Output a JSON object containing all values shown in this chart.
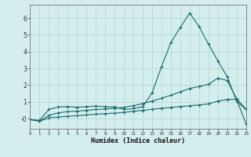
{
  "xlabel": "Humidex (Indice chaleur)",
  "bg_color": "#d4eeee",
  "grid_color": "#b8d8d8",
  "line_color": "#1a6b6b",
  "xlim": [
    0,
    23
  ],
  "ylim": [
    -0.6,
    6.8
  ],
  "xticks": [
    0,
    1,
    2,
    3,
    4,
    5,
    6,
    7,
    8,
    9,
    10,
    11,
    12,
    13,
    14,
    15,
    16,
    17,
    18,
    19,
    20,
    21,
    22,
    23
  ],
  "yticks": [
    0,
    1,
    2,
    3,
    4,
    5,
    6
  ],
  "curve1_x": [
    0,
    1,
    2,
    3,
    4,
    5,
    6,
    7,
    8,
    9,
    10,
    11,
    12,
    13,
    14,
    15,
    16,
    17,
    18,
    19,
    20,
    21,
    22,
    23
  ],
  "curve1_y": [
    -0.05,
    -0.1,
    0.55,
    0.7,
    0.72,
    0.68,
    0.72,
    0.75,
    0.72,
    0.7,
    0.55,
    0.6,
    0.72,
    1.55,
    3.1,
    4.55,
    5.45,
    6.3,
    5.5,
    4.45,
    3.45,
    2.5,
    1.05,
    0.55
  ],
  "curve2_x": [
    0,
    1,
    2,
    3,
    4,
    5,
    6,
    7,
    8,
    9,
    10,
    11,
    12,
    13,
    14,
    15,
    16,
    17,
    18,
    19,
    20,
    21,
    22,
    23
  ],
  "curve2_y": [
    -0.05,
    -0.15,
    0.2,
    0.35,
    0.42,
    0.45,
    0.5,
    0.55,
    0.58,
    0.62,
    0.68,
    0.78,
    0.9,
    1.05,
    1.22,
    1.4,
    1.6,
    1.8,
    1.92,
    2.05,
    2.42,
    2.28,
    1.18,
    0.58
  ],
  "curve3_x": [
    0,
    1,
    2,
    3,
    4,
    5,
    6,
    7,
    8,
    9,
    10,
    11,
    12,
    13,
    14,
    15,
    16,
    17,
    18,
    19,
    20,
    21,
    22,
    23
  ],
  "curve3_y": [
    -0.05,
    -0.15,
    0.05,
    0.1,
    0.14,
    0.18,
    0.22,
    0.27,
    0.3,
    0.33,
    0.38,
    0.44,
    0.5,
    0.56,
    0.62,
    0.67,
    0.72,
    0.77,
    0.82,
    0.88,
    1.05,
    1.15,
    1.15,
    -0.3
  ],
  "marker": "+",
  "markersize": 3,
  "linewidth": 0.8
}
